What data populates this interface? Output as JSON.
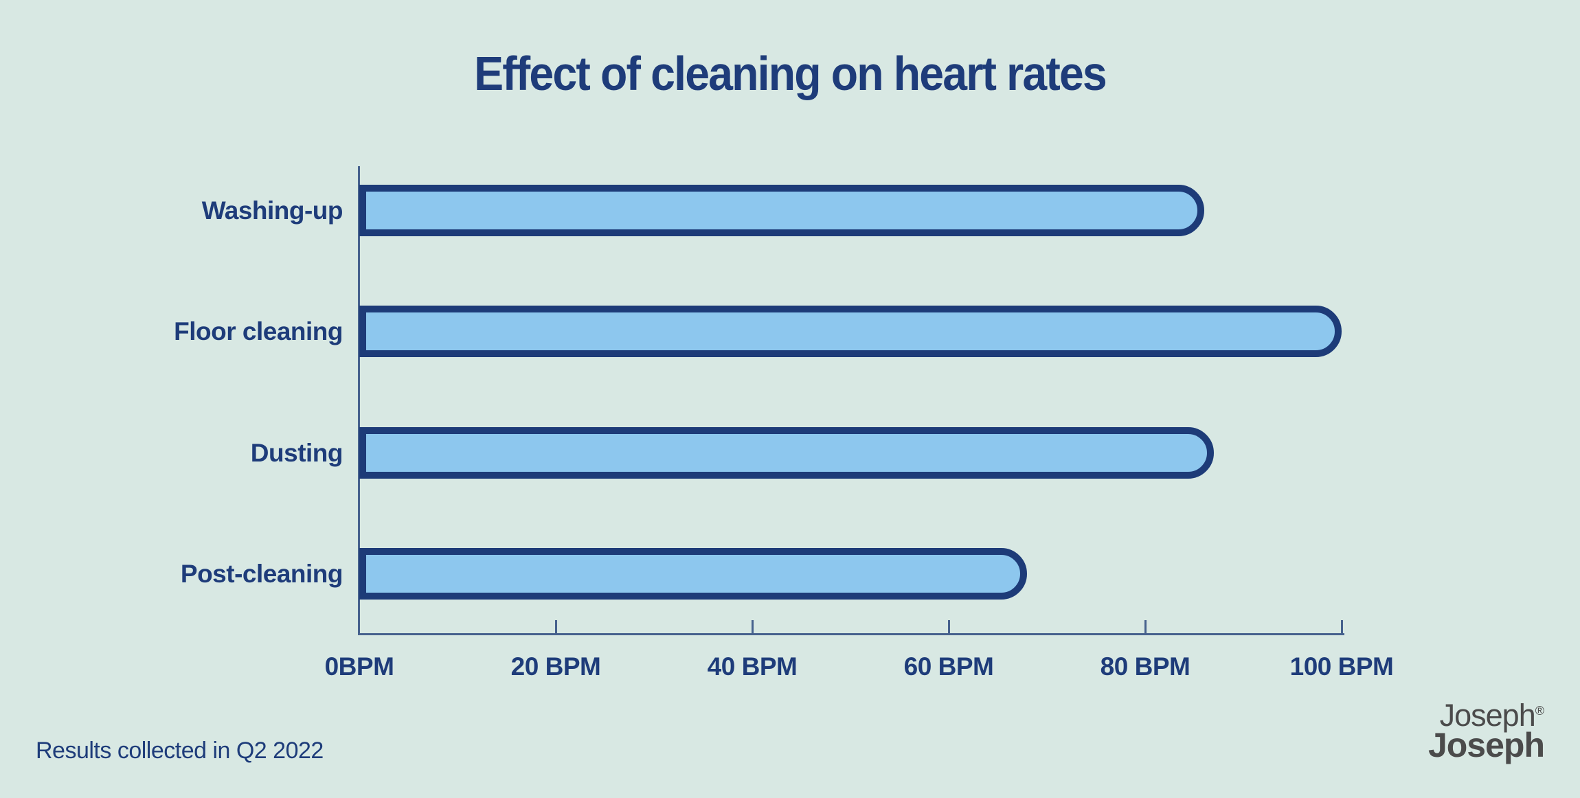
{
  "title": "Effect of cleaning on heart rates",
  "footnote": "Results collected in Q2 2022",
  "logo": {
    "line1": "Joseph",
    "registered": "®",
    "line2": "Joseph"
  },
  "colors": {
    "background": "#d8e8e3",
    "bar_fill": "#8dc7ee",
    "bar_border": "#1d3b78",
    "text_navy": "#1e3c7a",
    "axis_line": "#46618d",
    "logo_grey": "#4b4b4b"
  },
  "chart_data": {
    "type": "bar",
    "orientation": "horizontal",
    "title": "Effect of cleaning on heart rates",
    "categories": [
      "Washing-up",
      "Floor cleaning",
      "Dusting",
      "Post-cleaning"
    ],
    "values": [
      86,
      100,
      87,
      68
    ],
    "unit": "BPM",
    "xlabel": "",
    "ylabel": "",
    "xlim": [
      0,
      100
    ],
    "x_ticks": [
      0,
      20,
      40,
      60,
      80,
      100
    ],
    "x_tick_labels": [
      "0BPM",
      "20 BPM",
      "40 BPM",
      "60 BPM",
      "80 BPM",
      "100 BPM"
    ],
    "grid": false,
    "legend": false
  }
}
